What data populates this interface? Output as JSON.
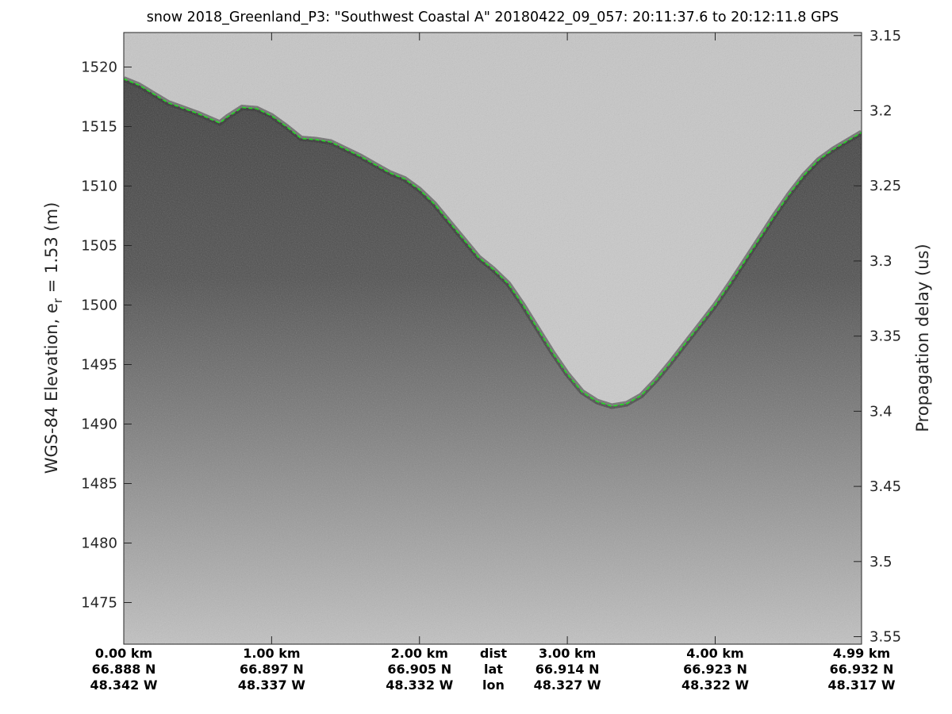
{
  "chart_data": {
    "type": "radar-echogram",
    "title": "snow 2018_Greenland_P3: \"Southwest Coastal A\"  20180422_09_057: 20:11:37.6 to 20:12:11.8 GPS",
    "ylabel_left": {
      "text": "WGS-84 Elevation, e",
      "subscript": "r",
      "suffix": " = 1.53 (m)"
    },
    "ylabel_right": "Propagation delay (us)",
    "left_axis": {
      "ylim": [
        1471.5,
        1522.9
      ],
      "ticks": [
        1520,
        1515,
        1510,
        1505,
        1500,
        1495,
        1490,
        1485,
        1480,
        1475
      ]
    },
    "right_axis": {
      "ylim": [
        3.148,
        3.555
      ],
      "ticks": [
        3.15,
        3.2,
        3.25,
        3.3,
        3.35,
        3.4,
        3.45,
        3.5,
        3.55
      ],
      "tick_labels": [
        "3.15",
        "3.2",
        "3.25",
        "3.3",
        "3.35",
        "3.4",
        "3.45",
        "3.5",
        "3.55"
      ]
    },
    "x_axis": {
      "xlim": [
        0.0,
        4.99
      ],
      "ticks": [
        0.0,
        1.0,
        2.0,
        3.0,
        4.0,
        4.99
      ],
      "dist_labels": [
        "0.00 km",
        "1.00 km",
        "2.00 km",
        "3.00 km",
        "4.00 km",
        "4.99 km"
      ],
      "lat_labels": [
        "66.888 N",
        "66.897 N",
        "66.905 N",
        "66.914 N",
        "66.923 N",
        "66.932 N"
      ],
      "lon_labels": [
        "48.342 W",
        "48.337 W",
        "48.332 W",
        "48.327 W",
        "48.322 W",
        "48.317 W"
      ],
      "row_names": [
        "dist",
        "lat",
        "lon"
      ],
      "row_names_position_km": 2.5
    },
    "surface_trace": {
      "name": "surface",
      "color": "#22dd22",
      "style": "dashed",
      "x": [
        0.0,
        0.1,
        0.3,
        0.5,
        0.65,
        0.7,
        0.8,
        0.9,
        1.0,
        1.1,
        1.2,
        1.3,
        1.4,
        1.5,
        1.6,
        1.7,
        1.8,
        1.9,
        2.0,
        2.1,
        2.2,
        2.3,
        2.4,
        2.5,
        2.6,
        2.7,
        2.8,
        2.9,
        3.0,
        3.1,
        3.2,
        3.3,
        3.4,
        3.5,
        3.6,
        3.7,
        3.8,
        3.9,
        4.0,
        4.1,
        4.2,
        4.3,
        4.4,
        4.5,
        4.6,
        4.7,
        4.8,
        4.99
      ],
      "y": [
        1519.0,
        1518.5,
        1517.0,
        1516.1,
        1515.3,
        1515.8,
        1516.6,
        1516.5,
        1515.9,
        1515.0,
        1514.0,
        1513.9,
        1513.7,
        1513.1,
        1512.5,
        1511.8,
        1511.1,
        1510.6,
        1509.7,
        1508.5,
        1507.0,
        1505.5,
        1504.0,
        1503.0,
        1501.8,
        1500.0,
        1498.0,
        1496.0,
        1494.2,
        1492.7,
        1491.9,
        1491.5,
        1491.7,
        1492.4,
        1493.7,
        1495.2,
        1496.8,
        1498.4,
        1500.0,
        1501.8,
        1503.7,
        1505.6,
        1507.5,
        1509.3,
        1510.9,
        1512.2,
        1513.1,
        1514.5
      ]
    },
    "grid": false,
    "colors": {
      "air": "#cbcbcb",
      "firn_dark": "#4a4a4a",
      "firn_deep": "#bdbdbd",
      "trace": "#22dd22",
      "axis": "#262626"
    }
  }
}
